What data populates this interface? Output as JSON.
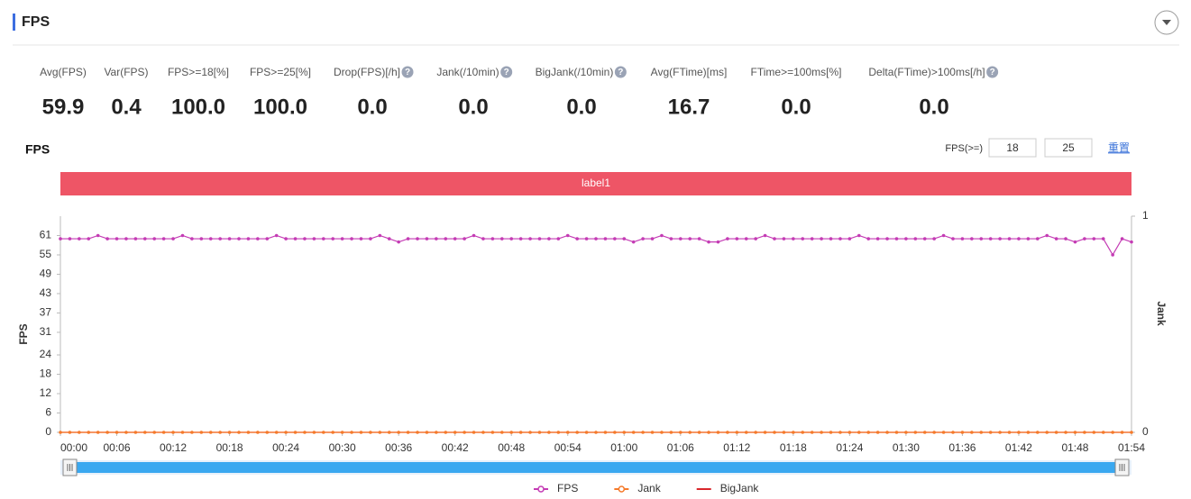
{
  "header": {
    "title": "FPS"
  },
  "metrics": [
    {
      "label": "Avg(FPS)",
      "value": "59.9"
    },
    {
      "label": "Var(FPS)",
      "value": "0.4"
    },
    {
      "label": "FPS>=18[%]",
      "value": "100.0"
    },
    {
      "label": "FPS>=25[%]",
      "value": "100.0"
    },
    {
      "label": "Drop(FPS)[/h]",
      "value": "0.0"
    },
    {
      "label": "Jank(/10min)",
      "value": "0.0"
    },
    {
      "label": "BigJank(/10min)",
      "value": "0.0"
    },
    {
      "label": "Avg(FTime)[ms]",
      "value": "16.7"
    },
    {
      "label": "FTime>=100ms[%]",
      "value": "0.0"
    },
    {
      "label": "Delta(FTime)>100ms[/h]",
      "value": "0.0"
    }
  ],
  "controls": {
    "label": "FPS(>=)",
    "inputs": [
      18,
      25
    ],
    "reset": "重置"
  },
  "chart_data": {
    "type": "line",
    "title": "FPS",
    "band_label": "label1",
    "ylabel": "FPS",
    "y2label": "Jank",
    "ylim": [
      0,
      67
    ],
    "yticks": [
      0,
      6,
      12,
      18,
      24,
      31,
      37,
      43,
      49,
      55,
      61
    ],
    "y2lim": [
      0,
      1
    ],
    "y2ticks": [
      0,
      1
    ],
    "grid": false,
    "categories": [
      "00:00",
      null,
      null,
      null,
      null,
      null,
      "00:06",
      null,
      null,
      null,
      null,
      null,
      "00:12",
      null,
      null,
      null,
      null,
      null,
      "00:18",
      null,
      null,
      null,
      null,
      null,
      "00:24",
      null,
      null,
      null,
      null,
      null,
      "00:30",
      null,
      null,
      null,
      null,
      null,
      "00:36",
      null,
      null,
      null,
      null,
      null,
      "00:42",
      null,
      null,
      null,
      null,
      null,
      "00:48",
      null,
      null,
      null,
      null,
      null,
      "00:54",
      null,
      null,
      null,
      null,
      null,
      "01:00",
      null,
      null,
      null,
      null,
      null,
      "01:06",
      null,
      null,
      null,
      null,
      null,
      "01:12",
      null,
      null,
      null,
      null,
      null,
      "01:18",
      null,
      null,
      null,
      null,
      null,
      "01:24",
      null,
      null,
      null,
      null,
      null,
      "01:30",
      null,
      null,
      null,
      null,
      null,
      "01:36",
      null,
      null,
      null,
      null,
      null,
      "01:42",
      null,
      null,
      null,
      null,
      null,
      "01:48",
      null,
      null,
      null,
      null,
      null,
      "01:54"
    ],
    "series": [
      {
        "name": "FPS",
        "color": "#c43bb4",
        "markers": true,
        "values": [
          60,
          60,
          60,
          60,
          61,
          60,
          60,
          60,
          60,
          60,
          60,
          60,
          60,
          61,
          60,
          60,
          60,
          60,
          60,
          60,
          60,
          60,
          60,
          61,
          60,
          60,
          60,
          60,
          60,
          60,
          60,
          60,
          60,
          60,
          61,
          60,
          59,
          60,
          60,
          60,
          60,
          60,
          60,
          60,
          61,
          60,
          60,
          60,
          60,
          60,
          60,
          60,
          60,
          60,
          61,
          60,
          60,
          60,
          60,
          60,
          60,
          59,
          60,
          60,
          61,
          60,
          60,
          60,
          60,
          59,
          59,
          60,
          60,
          60,
          60,
          61,
          60,
          60,
          60,
          60,
          60,
          60,
          60,
          60,
          60,
          61,
          60,
          60,
          60,
          60,
          60,
          60,
          60,
          60,
          61,
          60,
          60,
          60,
          60,
          60,
          60,
          60,
          60,
          60,
          60,
          61,
          60,
          60,
          59,
          60,
          60,
          60,
          55,
          60,
          59
        ]
      },
      {
        "name": "Jank",
        "color": "#f57a2b",
        "axis": "y2",
        "markers": true,
        "values": [
          0,
          0,
          0,
          0,
          0,
          0,
          0,
          0,
          0,
          0,
          0,
          0,
          0,
          0,
          0,
          0,
          0,
          0,
          0,
          0,
          0,
          0,
          0,
          0,
          0,
          0,
          0,
          0,
          0,
          0,
          0,
          0,
          0,
          0,
          0,
          0,
          0,
          0,
          0,
          0,
          0,
          0,
          0,
          0,
          0,
          0,
          0,
          0,
          0,
          0,
          0,
          0,
          0,
          0,
          0,
          0,
          0,
          0,
          0,
          0,
          0,
          0,
          0,
          0,
          0,
          0,
          0,
          0,
          0,
          0,
          0,
          0,
          0,
          0,
          0,
          0,
          0,
          0,
          0,
          0,
          0,
          0,
          0,
          0,
          0,
          0,
          0,
          0,
          0,
          0,
          0,
          0,
          0,
          0,
          0,
          0,
          0,
          0,
          0,
          0,
          0,
          0,
          0,
          0,
          0,
          0,
          0,
          0,
          0,
          0,
          0,
          0,
          0,
          0,
          0
        ]
      },
      {
        "name": "BigJank",
        "color": "#d9272c",
        "axis": "y2",
        "markers": false,
        "values": [
          0,
          0,
          0,
          0,
          0,
          0,
          0,
          0,
          0,
          0,
          0,
          0,
          0,
          0,
          0,
          0,
          0,
          0,
          0,
          0,
          0,
          0,
          0,
          0,
          0,
          0,
          0,
          0,
          0,
          0,
          0,
          0,
          0,
          0,
          0,
          0,
          0,
          0,
          0,
          0,
          0,
          0,
          0,
          0,
          0,
          0,
          0,
          0,
          0,
          0,
          0,
          0,
          0,
          0,
          0,
          0,
          0,
          0,
          0,
          0,
          0,
          0,
          0,
          0,
          0,
          0,
          0,
          0,
          0,
          0,
          0,
          0,
          0,
          0,
          0,
          0,
          0,
          0,
          0,
          0,
          0,
          0,
          0,
          0,
          0,
          0,
          0,
          0,
          0,
          0,
          0,
          0,
          0,
          0,
          0,
          0,
          0,
          0,
          0,
          0,
          0,
          0,
          0,
          0,
          0,
          0,
          0,
          0,
          0,
          0,
          0,
          0,
          0,
          0,
          0
        ]
      }
    ]
  }
}
